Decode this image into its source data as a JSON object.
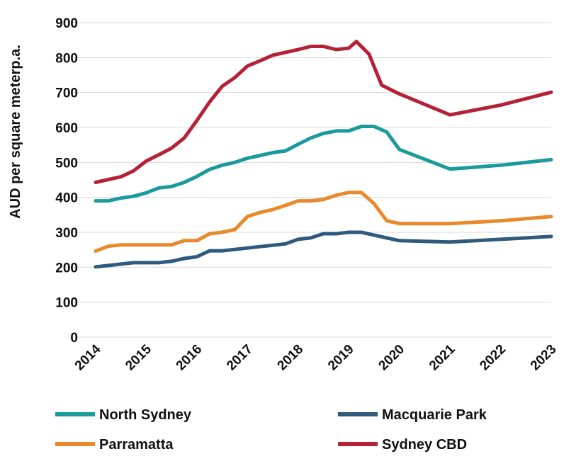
{
  "chart_data": {
    "type": "line",
    "title": "",
    "xlabel": "",
    "ylabel": "AUD per square meterp.a.",
    "ylim": [
      0,
      900
    ],
    "yticks": [
      0,
      100,
      200,
      300,
      400,
      500,
      600,
      700,
      800,
      900
    ],
    "xlim": [
      2014,
      2023
    ],
    "xticks": [
      "2014",
      "2015",
      "2016",
      "2017",
      "2018",
      "2019",
      "2020",
      "2021",
      "2022",
      "2023"
    ],
    "grid": true,
    "legend_position": "bottom",
    "series": [
      {
        "name": "North Sydney",
        "color": "#1a9a9c",
        "points": [
          [
            2014.0,
            390
          ],
          [
            2014.25,
            390
          ],
          [
            2014.5,
            398
          ],
          [
            2014.75,
            403
          ],
          [
            2015.0,
            413
          ],
          [
            2015.25,
            427
          ],
          [
            2015.5,
            431
          ],
          [
            2015.75,
            443
          ],
          [
            2016.0,
            460
          ],
          [
            2016.25,
            480
          ],
          [
            2016.5,
            492
          ],
          [
            2016.75,
            500
          ],
          [
            2017.0,
            512
          ],
          [
            2017.25,
            520
          ],
          [
            2017.5,
            528
          ],
          [
            2017.75,
            533
          ],
          [
            2018.0,
            552
          ],
          [
            2018.25,
            570
          ],
          [
            2018.5,
            583
          ],
          [
            2018.75,
            590
          ],
          [
            2019.0,
            590
          ],
          [
            2019.25,
            603
          ],
          [
            2019.5,
            603
          ],
          [
            2019.75,
            587
          ],
          [
            2020.0,
            537
          ],
          [
            2021.0,
            481
          ],
          [
            2022.0,
            492
          ],
          [
            2023.0,
            508
          ]
        ]
      },
      {
        "name": "Macquarie Park",
        "color": "#2e5a7e",
        "points": [
          [
            2014.0,
            201
          ],
          [
            2014.25,
            205
          ],
          [
            2014.5,
            209
          ],
          [
            2014.75,
            213
          ],
          [
            2015.0,
            213
          ],
          [
            2015.25,
            213
          ],
          [
            2015.5,
            217
          ],
          [
            2015.75,
            225
          ],
          [
            2016.0,
            230
          ],
          [
            2016.25,
            247
          ],
          [
            2016.5,
            247
          ],
          [
            2016.75,
            251
          ],
          [
            2017.0,
            255
          ],
          [
            2017.25,
            259
          ],
          [
            2017.5,
            263
          ],
          [
            2017.75,
            267
          ],
          [
            2018.0,
            280
          ],
          [
            2018.25,
            284
          ],
          [
            2018.5,
            296
          ],
          [
            2018.75,
            296
          ],
          [
            2019.0,
            300
          ],
          [
            2019.25,
            300
          ],
          [
            2019.5,
            292
          ],
          [
            2019.75,
            284
          ],
          [
            2020.0,
            276
          ],
          [
            2021.0,
            272
          ],
          [
            2022.0,
            280
          ],
          [
            2023.0,
            288
          ]
        ]
      },
      {
        "name": "Parramatta",
        "color": "#e8892b",
        "points": [
          [
            2014.0,
            246
          ],
          [
            2014.25,
            260
          ],
          [
            2014.5,
            264
          ],
          [
            2014.75,
            264
          ],
          [
            2015.0,
            264
          ],
          [
            2015.25,
            264
          ],
          [
            2015.5,
            264
          ],
          [
            2015.75,
            276
          ],
          [
            2016.0,
            276
          ],
          [
            2016.25,
            296
          ],
          [
            2016.5,
            300
          ],
          [
            2016.75,
            308
          ],
          [
            2017.0,
            345
          ],
          [
            2017.25,
            357
          ],
          [
            2017.5,
            365
          ],
          [
            2017.75,
            377
          ],
          [
            2018.0,
            390
          ],
          [
            2018.25,
            390
          ],
          [
            2018.5,
            394
          ],
          [
            2018.75,
            406
          ],
          [
            2019.0,
            414
          ],
          [
            2019.25,
            414
          ],
          [
            2019.5,
            382
          ],
          [
            2019.75,
            333
          ],
          [
            2020.0,
            325
          ],
          [
            2021.0,
            325
          ],
          [
            2022.0,
            333
          ],
          [
            2023.0,
            345
          ]
        ]
      },
      {
        "name": "Sydney CBD",
        "color": "#b52238",
        "points": [
          [
            2014.0,
            443
          ],
          [
            2014.25,
            451
          ],
          [
            2014.5,
            459
          ],
          [
            2014.75,
            476
          ],
          [
            2015.0,
            504
          ],
          [
            2015.25,
            522
          ],
          [
            2015.5,
            541
          ],
          [
            2015.75,
            570
          ],
          [
            2016.0,
            620
          ],
          [
            2016.25,
            673
          ],
          [
            2016.5,
            718
          ],
          [
            2016.75,
            743
          ],
          [
            2017.0,
            776
          ],
          [
            2017.25,
            791
          ],
          [
            2017.5,
            807
          ],
          [
            2017.75,
            815
          ],
          [
            2018.0,
            823
          ],
          [
            2018.25,
            832
          ],
          [
            2018.5,
            832
          ],
          [
            2018.75,
            823
          ],
          [
            2019.0,
            827
          ],
          [
            2019.15,
            846
          ],
          [
            2019.4,
            810
          ],
          [
            2019.65,
            721
          ],
          [
            2020.0,
            696
          ],
          [
            2021.0,
            636
          ],
          [
            2022.0,
            664
          ],
          [
            2023.0,
            701
          ]
        ]
      }
    ]
  }
}
